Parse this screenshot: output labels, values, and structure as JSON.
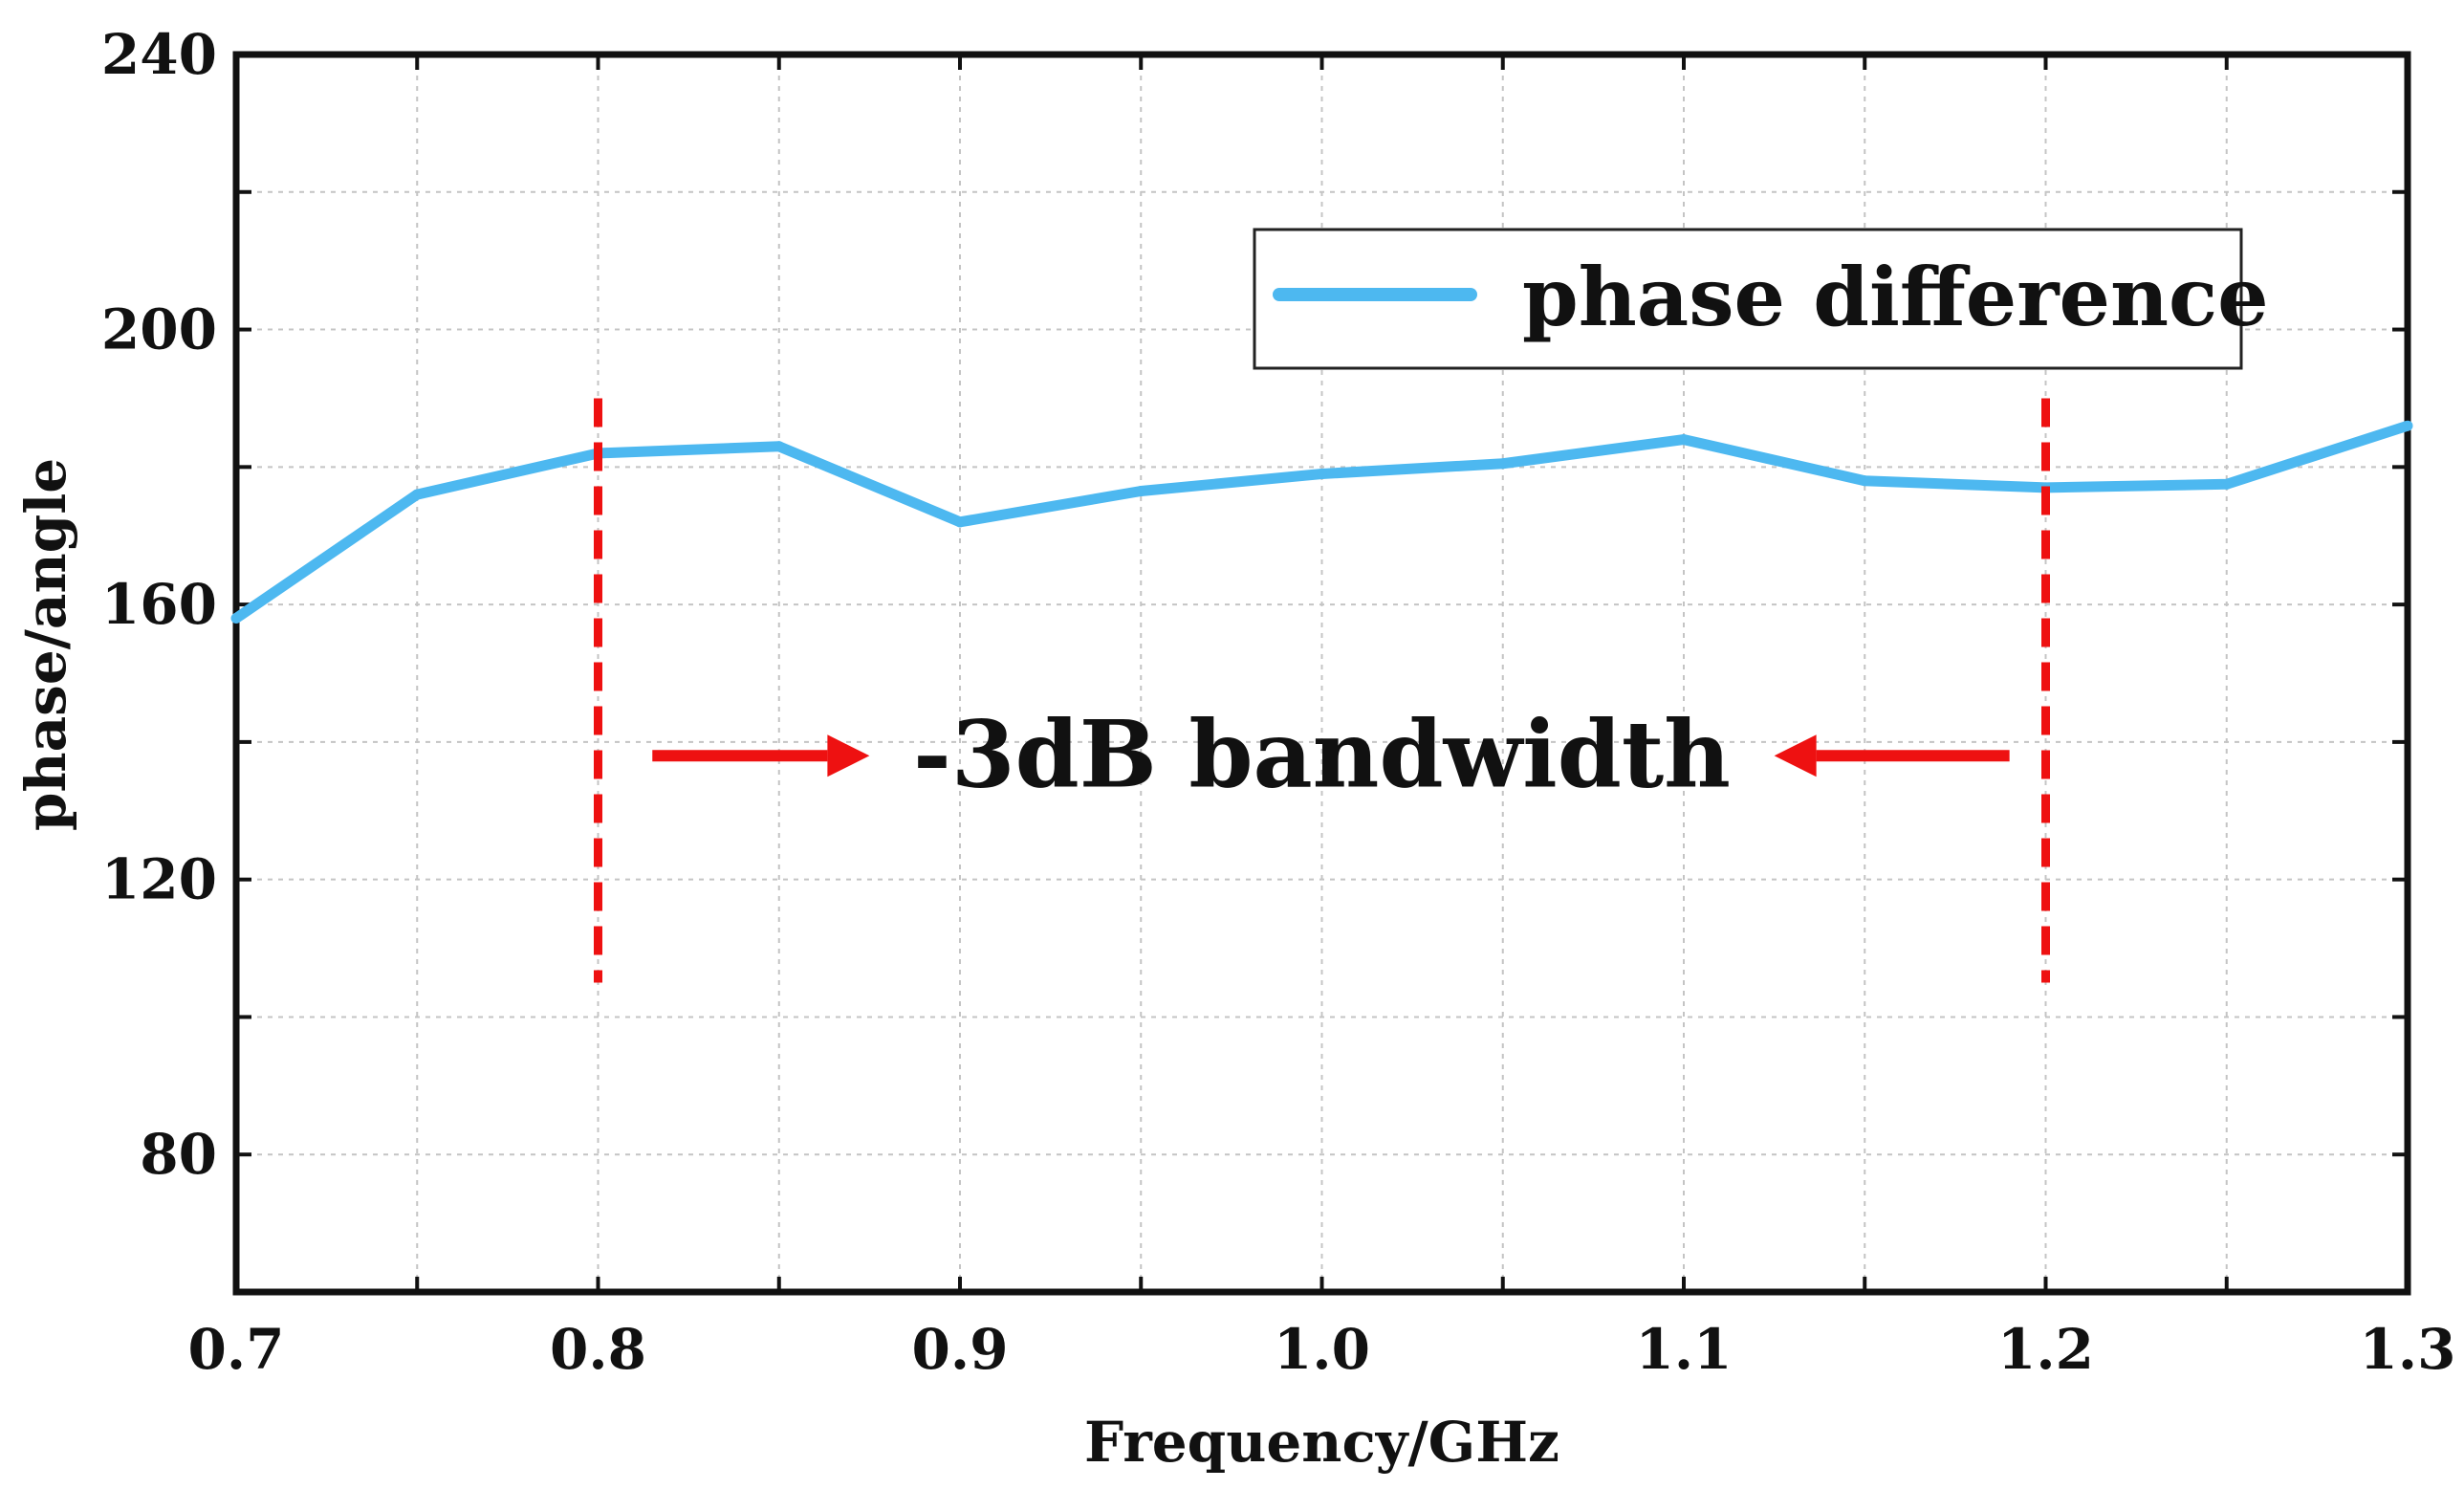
{
  "chart_data": {
    "type": "line",
    "title": "",
    "xlabel": "Frequency/GHz",
    "ylabel": "phase/angle",
    "xlim": [
      0.7,
      1.3
    ],
    "ylim": [
      60,
      240
    ],
    "xticks": [
      0.7,
      0.75,
      0.8,
      0.85,
      0.9,
      0.95,
      1.0,
      1.05,
      1.1,
      1.15,
      1.2,
      1.25,
      1.3
    ],
    "xtick_labels": [
      "0.7",
      "0.8",
      "0.9",
      "1.0",
      "1.1",
      "1.2",
      "1.3"
    ],
    "xtick_label_values": [
      0.7,
      0.8,
      0.9,
      1.0,
      1.1,
      1.2,
      1.3
    ],
    "yticks": [
      60,
      80,
      100,
      120,
      140,
      160,
      180,
      200,
      220,
      240
    ],
    "ytick_labels": [
      "80",
      "120",
      "160",
      "200",
      "240"
    ],
    "ytick_label_values": [
      80,
      120,
      160,
      200,
      240
    ],
    "grid": true,
    "legend_position": "top-right",
    "series": [
      {
        "name": "phase difference",
        "color": "#4db8f0",
        "x": [
          0.7,
          0.75,
          0.8,
          0.85,
          0.9,
          0.95,
          1.0,
          1.05,
          1.1,
          1.15,
          1.2,
          1.25,
          1.3
        ],
        "values": [
          158,
          176,
          182,
          183,
          172,
          176.5,
          179,
          180.5,
          184,
          178,
          177,
          177.5,
          186
        ]
      }
    ],
    "annotations": {
      "bandwidth_label": "-3dB bandwidth",
      "bandwidth_color": "#ee1111",
      "markers": [
        {
          "x": 0.8,
          "y_from": 105,
          "y_to": 190
        },
        {
          "x": 1.2,
          "y_from": 105,
          "y_to": 190
        }
      ],
      "arrows": [
        {
          "direction": "right",
          "x_from": 0.815,
          "x_to": 0.875,
          "y": 138
        },
        {
          "direction": "left",
          "x_from": 1.19,
          "x_to": 1.125,
          "y": 138
        }
      ]
    }
  }
}
